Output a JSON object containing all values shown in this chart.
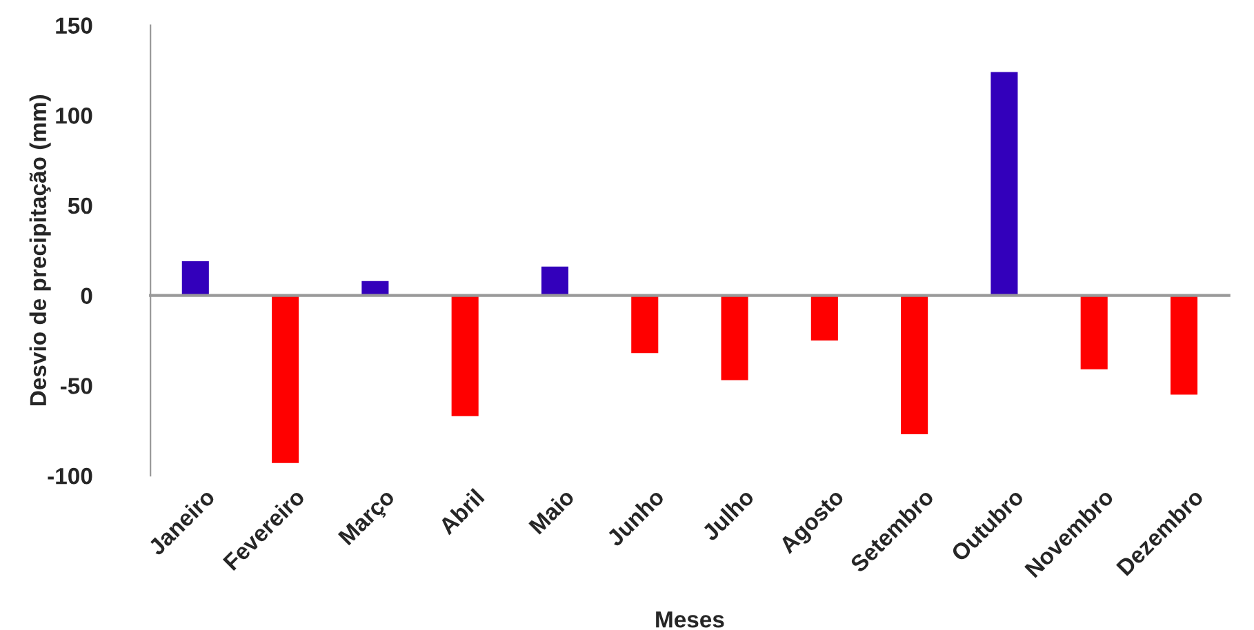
{
  "chart_data": {
    "type": "bar",
    "xlabel": "Meses",
    "ylabel": "Desvio de precipitação (mm)",
    "categories": [
      "Janeiro",
      "Fevereiro",
      "Março",
      "Abril",
      "Maio",
      "Junho",
      "Julho",
      "Agosto",
      "Setembro",
      "Outubro",
      "Novembro",
      "Dezembro"
    ],
    "values": [
      19,
      -93,
      8,
      -67,
      16,
      -32,
      -47,
      -25,
      -77,
      124,
      -41,
      -55
    ],
    "colors": [
      "#3300bb",
      "#ff0000",
      "#3300bb",
      "#ff0000",
      "#3300bb",
      "#ff0000",
      "#ff0000",
      "#ff0000",
      "#ff0000",
      "#3300bb",
      "#ff0000",
      "#ff0000"
    ],
    "ylim": [
      -100,
      150
    ],
    "yticks": [
      -100,
      -50,
      0,
      50,
      100,
      150
    ]
  }
}
